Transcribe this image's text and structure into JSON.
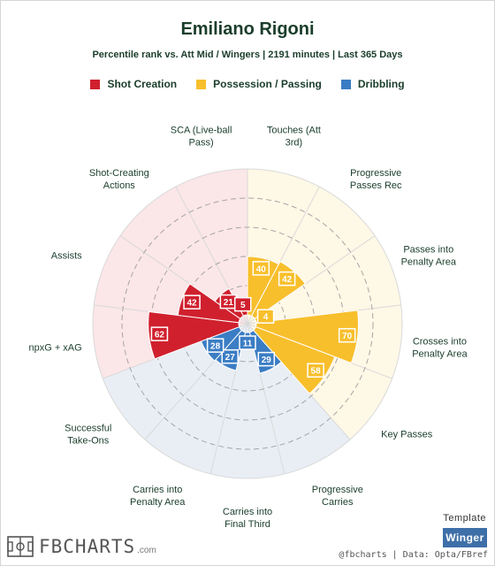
{
  "chart_data": {
    "type": "polar-bar",
    "title": "Emiliano Rigoni",
    "subtitle": "Percentile rank vs. Att Mid / Wingers | 2191 minutes | Last 365 Days",
    "range": [
      0,
      100
    ],
    "grid_rings": [
      20,
      40,
      60,
      80
    ],
    "legend_placement": "top-center",
    "categories_legend": [
      {
        "name": "Shot Creation",
        "color": "#d0202e",
        "bg": "#fbe6e8"
      },
      {
        "name": "Possession / Passing",
        "color": "#f8bf2c",
        "bg": "#fef8e6"
      },
      {
        "name": "Dribbling",
        "color": "#3b7dc4",
        "bg": "#e9eef5"
      }
    ],
    "metrics": [
      {
        "label": "Touches (Att 3rd)",
        "label_lines": [
          "Touches (Att",
          "3rd)"
        ],
        "value": 40,
        "group": 1
      },
      {
        "label": "Progressive Passes Rec",
        "label_lines": [
          "Progressive",
          "Passes Rec"
        ],
        "value": 42,
        "group": 1
      },
      {
        "label": "Passes into Penalty Area",
        "label_lines": [
          "Passes into",
          "Penalty Area"
        ],
        "value": 4,
        "group": 1
      },
      {
        "label": "Crosses into Penalty Area",
        "label_lines": [
          "Crosses into",
          "Penalty Area"
        ],
        "value": 70,
        "group": 1
      },
      {
        "label": "Key Passes",
        "label_lines": [
          "Key Passes"
        ],
        "value": 58,
        "group": 1
      },
      {
        "label": "Progressive Carries",
        "label_lines": [
          "Progressive",
          "Carries"
        ],
        "value": 29,
        "group": 2
      },
      {
        "label": "Carries into Final Third",
        "label_lines": [
          "Carries into",
          "Final Third"
        ],
        "value": 11,
        "group": 2
      },
      {
        "label": "Carries into Penalty Area",
        "label_lines": [
          "Carries into",
          "Penalty Area"
        ],
        "value": 27,
        "group": 2
      },
      {
        "label": "Successful Take-Ons",
        "label_lines": [
          "Successful",
          "Take-Ons"
        ],
        "value": 28,
        "group": 2
      },
      {
        "label": "npxG + xAG",
        "label_lines": [
          "npxG + xAG"
        ],
        "value": 62,
        "group": 0
      },
      {
        "label": "Assists",
        "label_lines": [
          "Assists"
        ],
        "value": 42,
        "group": 0
      },
      {
        "label": "Shot-Creating Actions",
        "label_lines": [
          "Shot-Creating",
          "Actions"
        ],
        "value": 21,
        "group": 0
      },
      {
        "label": "SCA (Live-ball Pass)",
        "label_lines": [
          "SCA (Live-ball",
          "Pass)"
        ],
        "value": 5,
        "group": 0
      }
    ]
  },
  "footer": {
    "template_label": "Template",
    "template_value": "Winger",
    "brand": "FBCHARTS",
    "brand_suffix": ".com",
    "credit": "@fbcharts | Data: Opta/FBref"
  }
}
